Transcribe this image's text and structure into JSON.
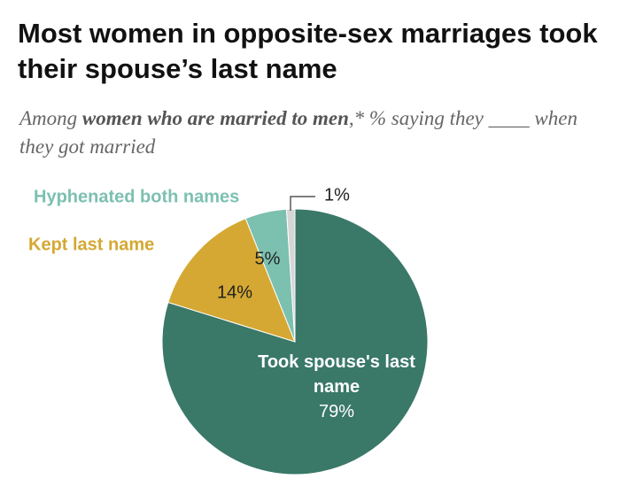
{
  "chart_data": {
    "type": "pie",
    "title": "Most women in opposite-sex marriages took their spouse’s last name",
    "subtitle_parts": [
      "Among ",
      "women who are married to men",
      ",* % saying they ____ when they got married"
    ],
    "categories": [
      "Took spouse's last name",
      "Kept last name",
      "Hyphenated both names",
      null
    ],
    "values": [
      79,
      14,
      5,
      1
    ],
    "value_labels": [
      "79%",
      "14%",
      "5%",
      "1%"
    ],
    "colors": [
      "#3a7868",
      "#d4a832",
      "#7cc0b0",
      "#d6d6d6"
    ]
  }
}
